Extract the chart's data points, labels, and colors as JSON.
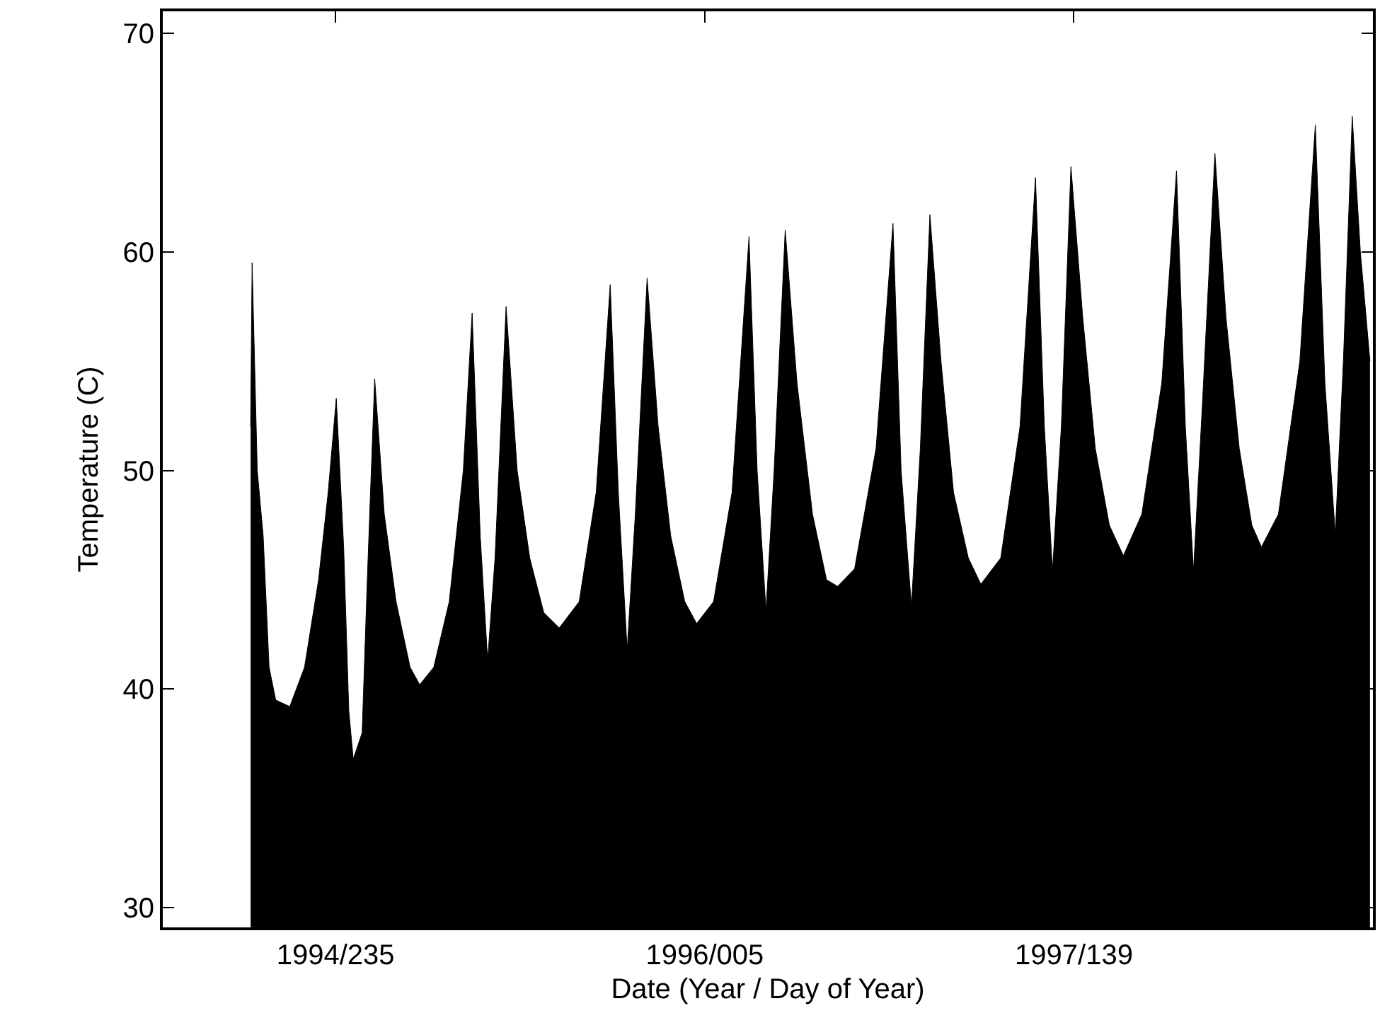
{
  "chart_data": {
    "type": "area",
    "xlabel": "Date (Year / Day of Year)",
    "ylabel": "Temperature (C)",
    "xlim": [
      "1994-01-01",
      "1998-06-28"
    ],
    "xticks": [
      {
        "value": "1994-08-23",
        "label": "1994/235"
      },
      {
        "value": "1996-01-05",
        "label": "1996/005"
      },
      {
        "value": "1997-05-19",
        "label": "1997/139"
      }
    ],
    "ylim": [
      29.1,
      71
    ],
    "yticks": [
      30,
      40,
      50,
      60,
      70
    ],
    "grid": false,
    "x": [
      "1994-04-30",
      "1994-05-02",
      "1994-05-09",
      "1994-05-17",
      "1994-05-25",
      "1994-06-03",
      "1994-06-22",
      "1994-07-12",
      "1994-07-31",
      "1994-08-13",
      "1994-08-24",
      "1994-09-03",
      "1994-09-10",
      "1994-09-16",
      "1994-09-28",
      "1994-10-05",
      "1994-10-15",
      "1994-10-28",
      "1994-11-13",
      "1994-12-02",
      "1994-12-15",
      "1995-01-03",
      "1995-01-24",
      "1995-02-12",
      "1995-02-24",
      "1995-03-07",
      "1995-03-17",
      "1995-03-27",
      "1995-04-11",
      "1995-04-26",
      "1995-05-13",
      "1995-06-01",
      "1995-06-22",
      "1995-07-19",
      "1995-08-11",
      "1995-08-30",
      "1995-09-10",
      "1995-09-22",
      "1995-10-03",
      "1995-10-19",
      "1995-11-03",
      "1995-11-20",
      "1995-12-09",
      "1995-12-25",
      "1996-01-17",
      "1996-02-11",
      "1996-03-05",
      "1996-03-16",
      "1996-03-28",
      "1996-04-08",
      "1996-04-23",
      "1996-05-09",
      "1996-05-30",
      "1996-06-18",
      "1996-07-03",
      "1996-07-26",
      "1996-08-24",
      "1996-09-16",
      "1996-09-27",
      "1996-10-11",
      "1996-10-23",
      "1996-11-05",
      "1996-11-20",
      "1996-12-07",
      "1996-12-27",
      "1997-01-13",
      "1997-02-09",
      "1997-03-07",
      "1997-03-28",
      "1997-04-09",
      "1997-04-20",
      "1997-05-02",
      "1997-05-15",
      "1997-05-31",
      "1997-06-17",
      "1997-07-06",
      "1997-07-25",
      "1997-08-19",
      "1997-09-15",
      "1997-10-05",
      "1997-10-17",
      "1997-10-28",
      "1997-11-09",
      "1997-11-26",
      "1997-12-11",
      "1997-12-29",
      "1998-01-15",
      "1998-01-28",
      "1998-02-20",
      "1998-03-21",
      "1998-04-11",
      "1998-04-24",
      "1998-05-08",
      "1998-05-19",
      "1998-05-31",
      "1998-06-11",
      "1998-06-24"
    ],
    "series": [
      {
        "color": "#000000",
        "values": [
          52,
          59.5,
          50,
          47,
          41,
          39.5,
          39.2,
          41,
          45,
          49,
          53.3,
          46.5,
          39,
          36.8,
          38,
          45,
          54.2,
          48,
          44,
          41,
          40.2,
          41,
          44,
          50,
          57.2,
          47,
          41.3,
          46,
          57.5,
          50,
          46,
          43.5,
          42.8,
          44,
          49,
          58.5,
          49,
          41.8,
          48,
          58.8,
          52,
          47,
          44,
          43,
          44,
          49,
          60.7,
          50,
          43.6,
          50,
          61,
          54,
          48,
          45,
          44.7,
          45.5,
          51,
          61.3,
          50,
          43.8,
          51,
          61.7,
          55,
          49,
          46,
          44.8,
          46,
          52,
          63.4,
          52,
          45.4,
          52,
          63.9,
          57,
          51,
          47.5,
          46.1,
          48,
          54,
          63.7,
          52,
          45.4,
          53,
          64.5,
          57,
          51,
          47.5,
          46.5,
          48,
          55,
          65.8,
          54,
          47.1,
          55,
          66.2,
          60,
          55
        ]
      }
    ]
  }
}
